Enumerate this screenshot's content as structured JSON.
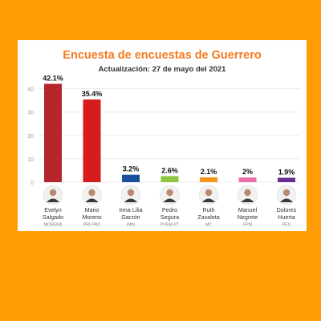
{
  "chart_data": {
    "type": "bar",
    "title": "Encuesta de encuestas de Guerrero",
    "subtitle": "Actualización: 27 de mayo del 2021",
    "yticks": [
      0,
      10,
      20,
      30,
      40
    ],
    "ylim": [
      0,
      45
    ],
    "grid": true,
    "categories": [
      {
        "name_line1": "Evelyn",
        "name_line2": "Salgado",
        "party": "MORENA",
        "value": 42.1,
        "label": "42.1%",
        "color": "#b5252c"
      },
      {
        "name_line1": "Mario",
        "name_line2": "Moreno",
        "party": "PRI-PRD",
        "value": 35.4,
        "label": "35.4%",
        "color": "#d81b1b"
      },
      {
        "name_line1": "Irma Lilia",
        "name_line2": "Garzón",
        "party": "PAN",
        "value": 3.2,
        "label": "3.2%",
        "color": "#1a4f9c"
      },
      {
        "name_line1": "Pedro",
        "name_line2": "Segura",
        "party": "PVEM-PT",
        "value": 2.6,
        "label": "2.6%",
        "color": "#8dc63f"
      },
      {
        "name_line1": "Ruth",
        "name_line2": "Zavaleta",
        "party": "MC",
        "value": 2.1,
        "label": "2.1%",
        "color": "#f7941d"
      },
      {
        "name_line1": "Manuel",
        "name_line2": "Negrete",
        "party": "FPM",
        "value": 2.0,
        "label": "2%",
        "color": "#ec6fa8"
      },
      {
        "name_line1": "Dolores",
        "name_line2": "Huerta",
        "party": "PES",
        "value": 1.9,
        "label": "1.9%",
        "color": "#6a2c91"
      }
    ]
  },
  "colors": {
    "background": "#ff9c05",
    "title": "#f47b20",
    "subtitle": "#333333",
    "grid": "#e6e6e6",
    "tick": "#9a9a9a"
  }
}
